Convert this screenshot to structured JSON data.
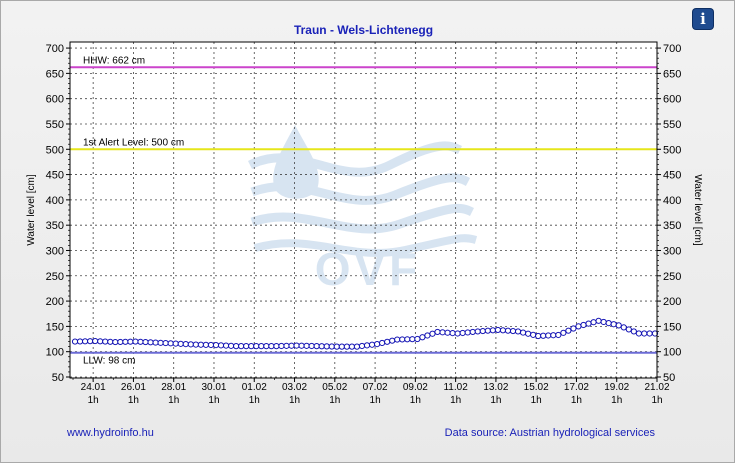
{
  "info_button": {
    "label": "i"
  },
  "footer": {
    "link": "www.hydroinfo.hu",
    "source": "Data source: Austrian hydrological services"
  },
  "watermark": {
    "text": "OVF"
  },
  "chart_data": {
    "type": "line",
    "title": "Traun - Wels-Lichtenegg",
    "ylabel": "Water level [cm]",
    "ylabel_right": "Water level [cm]",
    "ylim": [
      48,
      712
    ],
    "yticks": [
      50,
      100,
      150,
      200,
      250,
      300,
      350,
      400,
      450,
      500,
      550,
      600,
      650,
      700
    ],
    "x_ticks": [
      {
        "d": 0.9,
        "label": "24.01",
        "sub": "1h"
      },
      {
        "d": 2.9,
        "label": "26.01",
        "sub": "1h"
      },
      {
        "d": 4.9,
        "label": "28.01",
        "sub": "1h"
      },
      {
        "d": 6.9,
        "label": "30.01",
        "sub": "1h"
      },
      {
        "d": 8.9,
        "label": "01.02",
        "sub": "1h"
      },
      {
        "d": 10.9,
        "label": "03.02",
        "sub": "1h"
      },
      {
        "d": 12.9,
        "label": "05.02",
        "sub": "1h"
      },
      {
        "d": 14.9,
        "label": "07.02",
        "sub": "1h"
      },
      {
        "d": 16.9,
        "label": "09.02",
        "sub": "1h"
      },
      {
        "d": 18.9,
        "label": "11.02",
        "sub": "1h"
      },
      {
        "d": 20.9,
        "label": "13.02",
        "sub": "1h"
      },
      {
        "d": 22.9,
        "label": "15.02",
        "sub": "1h"
      },
      {
        "d": 24.9,
        "label": "17.02",
        "sub": "1h"
      },
      {
        "d": 26.9,
        "label": "19.02",
        "sub": "1h"
      },
      {
        "d": 28.9,
        "label": "21.02",
        "sub": "1h"
      }
    ],
    "xlim": [
      -0.25,
      28.9
    ],
    "grid": true,
    "reference_lines": [
      {
        "name": "HHW: 662 cm",
        "value": 662,
        "color": "#cc44cc"
      },
      {
        "name": "1st Alert Level: 500 cm",
        "value": 500,
        "color": "#e6e61a"
      },
      {
        "name": "LLW: 98 cm",
        "value": 98,
        "color": "#6b6bd6"
      }
    ],
    "series": [
      {
        "color": "#1414b4",
        "points": [
          {
            "d": 0,
            "v": 120
          },
          {
            "d": 1,
            "v": 121
          },
          {
            "d": 2,
            "v": 119
          },
          {
            "d": 3,
            "v": 120
          },
          {
            "d": 4,
            "v": 118
          },
          {
            "d": 5,
            "v": 116
          },
          {
            "d": 6,
            "v": 114
          },
          {
            "d": 7,
            "v": 113
          },
          {
            "d": 8,
            "v": 111
          },
          {
            "d": 9,
            "v": 111
          },
          {
            "d": 10,
            "v": 111
          },
          {
            "d": 11,
            "v": 112
          },
          {
            "d": 12,
            "v": 111
          },
          {
            "d": 13,
            "v": 110
          },
          {
            "d": 14,
            "v": 110
          },
          {
            "d": 15,
            "v": 115
          },
          {
            "d": 16,
            "v": 124
          },
          {
            "d": 17,
            "v": 125
          },
          {
            "d": 18,
            "v": 139
          },
          {
            "d": 19,
            "v": 136
          },
          {
            "d": 20,
            "v": 140
          },
          {
            "d": 21,
            "v": 143
          },
          {
            "d": 22,
            "v": 140
          },
          {
            "d": 23,
            "v": 131
          },
          {
            "d": 24,
            "v": 133
          },
          {
            "d": 25,
            "v": 150
          },
          {
            "d": 26,
            "v": 161
          },
          {
            "d": 27,
            "v": 152
          },
          {
            "d": 28,
            "v": 136
          },
          {
            "d": 28.8,
            "v": 136
          }
        ]
      }
    ]
  }
}
